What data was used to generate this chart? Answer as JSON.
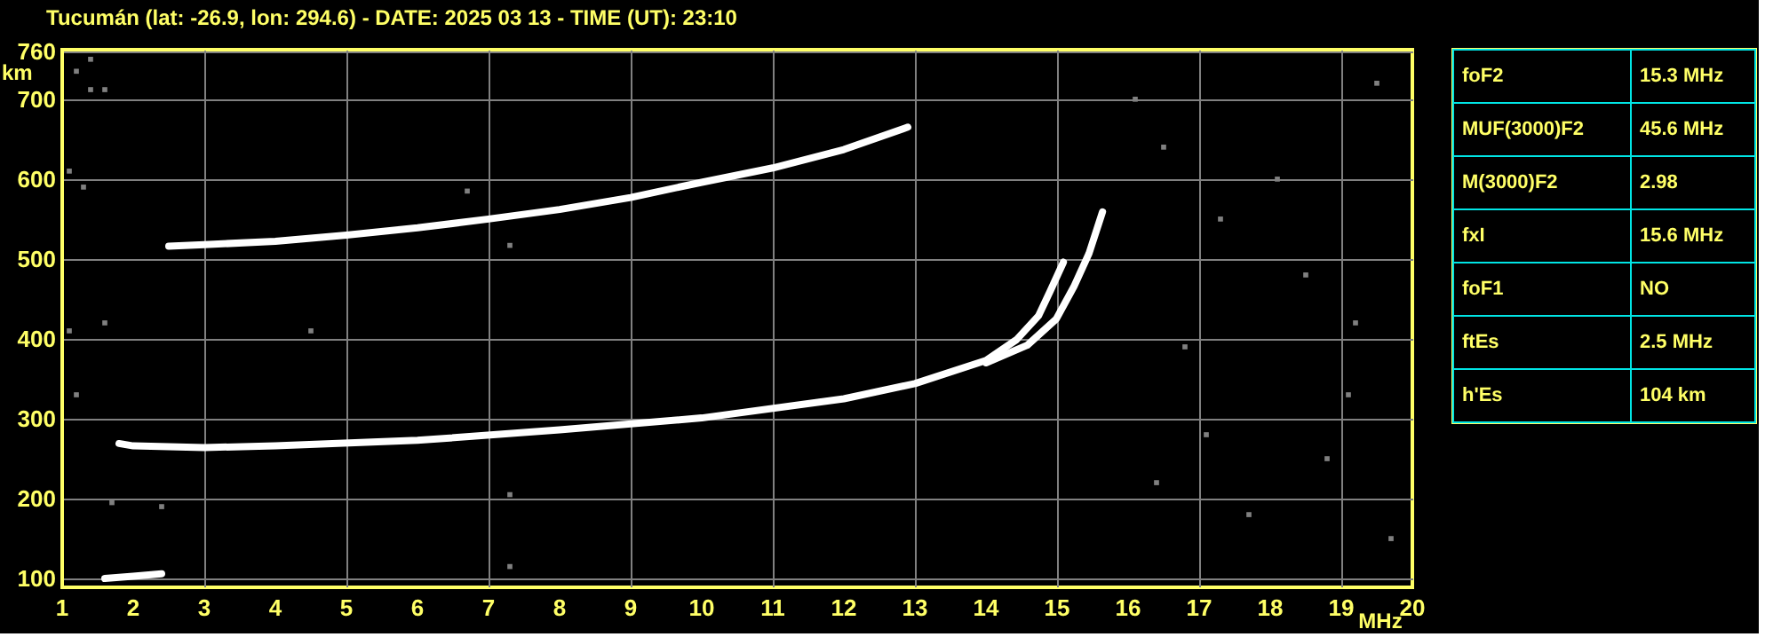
{
  "chart_data": [
    {
      "type": "line",
      "title": "Tucumán (lat: -26.9, lon: 294.6) - DATE: 2025 03 13 - TIME (UT): 23:10",
      "xlabel": "MHz",
      "ylabel": "km",
      "xlim": [
        1,
        20
      ],
      "ylim": [
        89,
        762
      ],
      "xticks": [
        1,
        2,
        3,
        4,
        5,
        6,
        7,
        8,
        9,
        10,
        11,
        12,
        13,
        14,
        15,
        16,
        17,
        18,
        19,
        20
      ],
      "yticks": [
        100,
        200,
        300,
        400,
        500,
        600,
        700,
        760
      ],
      "grid": true,
      "legend": false,
      "series": [
        {
          "type": "line",
          "color": "#ffffff",
          "x": [
            1.8,
            2,
            3,
            4,
            6,
            8,
            10,
            12,
            13,
            14,
            14.43,
            14.74,
            14.9,
            15.09
          ],
          "values": [
            269,
            266,
            264,
            266,
            273,
            286,
            301,
            325,
            344,
            373,
            399,
            429,
            459,
            496
          ]
        },
        {
          "type": "line",
          "color": "#ffffff",
          "x": [
            14,
            14.58,
            14.99,
            15.24,
            15.45,
            15.64
          ],
          "values": [
            370,
            392,
            425,
            466,
            507,
            559
          ]
        },
        {
          "type": "line",
          "color": "#ffffff",
          "x": [
            2.5,
            3,
            4,
            5,
            6,
            7,
            8,
            9,
            10,
            11,
            12,
            12.9
          ],
          "values": [
            516,
            518,
            522,
            530,
            539,
            550,
            562,
            577,
            596,
            614,
            637,
            665
          ]
        },
        {
          "type": "line",
          "color": "#ffffff",
          "x": [
            1.6,
            2,
            2.4
          ],
          "values": [
            100,
            103,
            106
          ]
        },
        {
          "type": "scatter",
          "color": "#808080",
          "marker": "square",
          "x": [
            1.2,
            1.4,
            1.4,
            1.6,
            1.1,
            1.3,
            1.1,
            1.6,
            1.2,
            1.7,
            2.4,
            4.5,
            7.3,
            7.3,
            7.3,
            6.7,
            16.1,
            16.5,
            17.3,
            18.5,
            19.2,
            16.4,
            17.7,
            19.1,
            18.1,
            19.5,
            16.8,
            17.1,
            18.8,
            19.7
          ],
          "values": [
            735,
            750,
            712,
            712,
            610,
            590,
            410,
            420,
            330,
            195,
            190,
            410,
            517,
            205,
            115,
            585,
            700,
            640,
            550,
            480,
            420,
            220,
            180,
            330,
            600,
            720,
            390,
            280,
            250,
            150
          ]
        }
      ]
    },
    {
      "type": "other",
      "annotations": [
        "foF2",
        "15.3 MHz",
        "MUF(3000)F2",
        "45.6 MHz",
        "M(3000)F2",
        "2.98",
        "fxI",
        "15.6 MHz",
        "foF1",
        "NO",
        "ftEs",
        "2.5 MHz",
        "h'Es",
        "104 km"
      ]
    }
  ]
}
